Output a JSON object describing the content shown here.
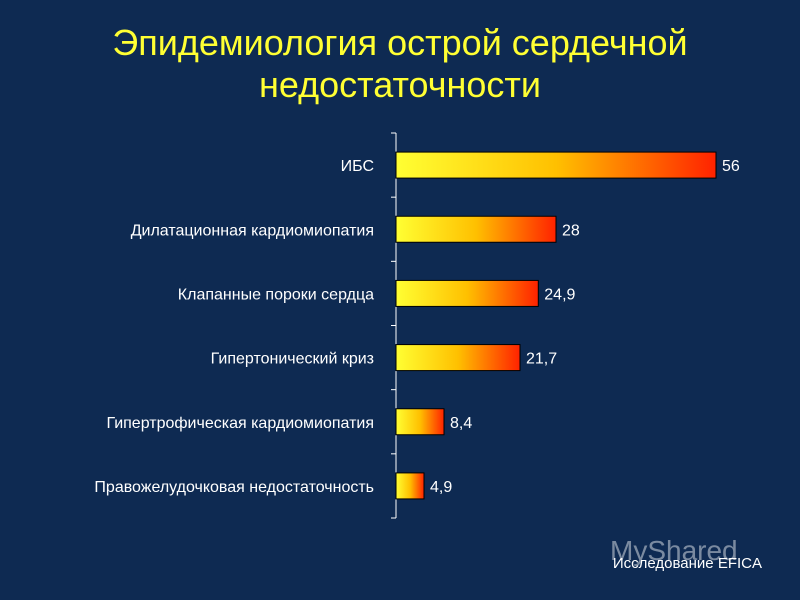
{
  "slide": {
    "title": "Эпидемиология острой сердечной недостаточности",
    "source": "Исследование EFICA",
    "watermark": "MyShared"
  },
  "colors": {
    "background": "#0e2a52",
    "title": "#ffff33",
    "bar_start": "#ffff33",
    "bar_end": "#ff2200",
    "text": "#ffffff"
  },
  "chart_data": {
    "type": "bar",
    "orientation": "horizontal",
    "categories": [
      "ИБС",
      "Дилатационная кардиомиопатия",
      "Клапанные пороки сердца",
      "Гипертонический криз",
      "Гипертрофическая кардиомиопатия",
      "Правожелудочковая недостаточность"
    ],
    "values": [
      56,
      28,
      24.9,
      21.7,
      8.4,
      4.9
    ],
    "value_labels": [
      "56",
      "28",
      "24,9",
      "21,7",
      "8,4",
      "4,9"
    ],
    "xlim": [
      0,
      56
    ],
    "grid": false,
    "legend": "none"
  }
}
